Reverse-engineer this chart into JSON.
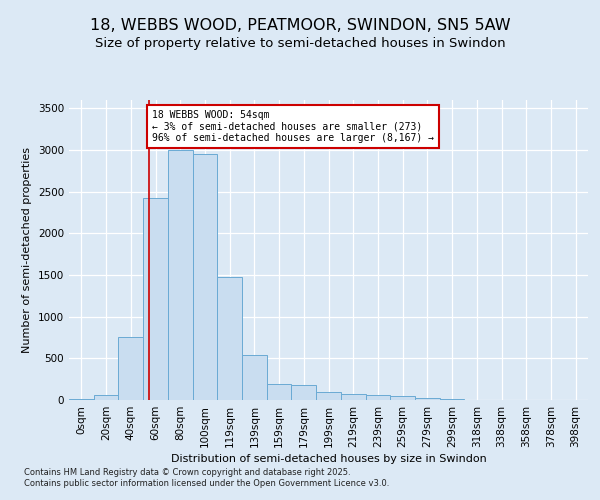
{
  "title_line1": "18, WEBBS WOOD, PEATMOOR, SWINDON, SN5 5AW",
  "title_line2": "Size of property relative to semi-detached houses in Swindon",
  "xlabel": "Distribution of semi-detached houses by size in Swindon",
  "ylabel": "Number of semi-detached properties",
  "categories": [
    "0sqm",
    "20sqm",
    "40sqm",
    "60sqm",
    "80sqm",
    "100sqm",
    "119sqm",
    "139sqm",
    "159sqm",
    "179sqm",
    "199sqm",
    "219sqm",
    "239sqm",
    "259sqm",
    "279sqm",
    "299sqm",
    "318sqm",
    "338sqm",
    "358sqm",
    "378sqm",
    "398sqm"
  ],
  "values": [
    10,
    55,
    760,
    2420,
    3000,
    2950,
    1480,
    545,
    190,
    185,
    100,
    75,
    60,
    50,
    30,
    10,
    5,
    2,
    1,
    0,
    0
  ],
  "bar_color": "#c9ddf0",
  "bar_edge_color": "#6aaad4",
  "bar_linewidth": 0.7,
  "vline_color": "#cc0000",
  "annotation_text": "18 WEBBS WOOD: 54sqm\n← 3% of semi-detached houses are smaller (273)\n96% of semi-detached houses are larger (8,167) →",
  "annotation_box_color": "white",
  "annotation_box_edge": "#cc0000",
  "ylim": [
    0,
    3600
  ],
  "yticks": [
    0,
    500,
    1000,
    1500,
    2000,
    2500,
    3000,
    3500
  ],
  "background_color": "#dce9f5",
  "axes_background": "#dce9f5",
  "footer_text": "Contains HM Land Registry data © Crown copyright and database right 2025.\nContains public sector information licensed under the Open Government Licence v3.0.",
  "title_fontsize": 11.5,
  "subtitle_fontsize": 9.5,
  "axis_label_fontsize": 8,
  "tick_fontsize": 7.5,
  "annotation_fontsize": 7,
  "footer_fontsize": 6
}
